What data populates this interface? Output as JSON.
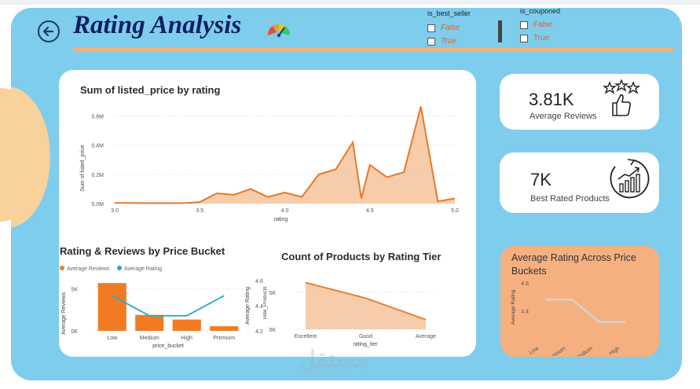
{
  "header": {
    "title": "Rating Analysis"
  },
  "slicers": [
    {
      "label": "is_best_seller",
      "options": [
        "False",
        "True"
      ]
    },
    {
      "label": "is_couponed",
      "options": [
        "False",
        "True"
      ]
    }
  ],
  "kpis": [
    {
      "value": "3.81K",
      "label": "Average Reviews",
      "icon": "stars-thumbs-up-icon"
    },
    {
      "value": "7K",
      "label": "Best Rated Products",
      "icon": "growth-chart-icon"
    }
  ],
  "watermark": {
    "text": "مستقل",
    "sub": "mostaql.com"
  },
  "colors": {
    "background": "#7ecdec",
    "accent": "#f2b27c",
    "orange": "#e67e22",
    "teal": "#2aa8c8",
    "title": "#0f1f5f",
    "highlight_card": "#f6b07f"
  },
  "chart_data": [
    {
      "type": "area",
      "title": "Sum of listed_price by rating",
      "xlabel": "rating",
      "ylabel": "Sum of listed_price",
      "xlim": [
        3.0,
        5.0
      ],
      "ylim": [
        0,
        0.7
      ],
      "x_ticks": [
        3.0,
        3.5,
        4.0,
        4.5,
        5.0
      ],
      "x_tick_labels": [
        "3.0",
        "3.5",
        "4.0",
        "4.5",
        "5.0"
      ],
      "y_ticks": [
        0,
        0.2,
        0.4,
        0.6
      ],
      "y_tick_labels": [
        "0.0M",
        "0.2M",
        "0.4M",
        "0.6M"
      ],
      "x": [
        3.0,
        3.2,
        3.4,
        3.5,
        3.6,
        3.7,
        3.8,
        3.9,
        4.0,
        4.1,
        4.2,
        4.3,
        4.4,
        4.45,
        4.5,
        4.6,
        4.7,
        4.8,
        4.9,
        5.0
      ],
      "values": [
        0.005,
        0.003,
        0.003,
        0.01,
        0.07,
        0.06,
        0.1,
        0.045,
        0.075,
        0.045,
        0.2,
        0.235,
        0.42,
        0.035,
        0.265,
        0.18,
        0.215,
        0.665,
        0.015,
        0.035
      ]
    },
    {
      "type": "bar",
      "title": "Rating & Reviews by Price Bucket",
      "xlabel": "price_bucket",
      "ylabel": "Average Reviews",
      "y2label": "Average Rating",
      "categories": [
        "Low",
        "Medium",
        "High",
        "Premium"
      ],
      "ylim": [
        0,
        6000
      ],
      "y_ticks": [
        0,
        5000
      ],
      "y_tick_labels": [
        "0K",
        "5K"
      ],
      "y2lim": [
        4.2,
        4.6
      ],
      "y2_ticks": [
        4.2,
        4.4,
        4.6
      ],
      "y2_tick_labels": [
        "4.2",
        "4.4",
        "4.6"
      ],
      "series": [
        {
          "name": "Average Reviews",
          "kind": "bar",
          "color": "#f07b22",
          "values": [
            5700,
            1900,
            1350,
            550
          ]
        },
        {
          "name": "Average Rating",
          "kind": "line",
          "color": "#2aa8c8",
          "values": [
            4.48,
            4.32,
            4.32,
            4.48
          ]
        }
      ]
    },
    {
      "type": "area",
      "title": "Count of Products by Rating Tier",
      "xlabel": "rating_tier",
      "ylabel": "Total_Products",
      "categories": [
        "Excellent",
        "Good",
        "Average"
      ],
      "ylim": [
        0,
        7000
      ],
      "y_ticks": [
        0,
        5000
      ],
      "y_tick_labels": [
        "0K",
        "5K"
      ],
      "values": [
        6300,
        4200,
        1300
      ]
    },
    {
      "type": "line",
      "title": "Average Rating Across Price Buckets",
      "ylabel": "Average Rating",
      "categories": [
        "Low",
        "Premium",
        "Medium",
        "High"
      ],
      "ylim": [
        4.2,
        4.6
      ],
      "y_ticks": [
        4.4,
        4.6
      ],
      "y_tick_labels": [
        "4.4",
        "4.6"
      ],
      "values": [
        4.48,
        4.48,
        4.32,
        4.32
      ]
    }
  ]
}
